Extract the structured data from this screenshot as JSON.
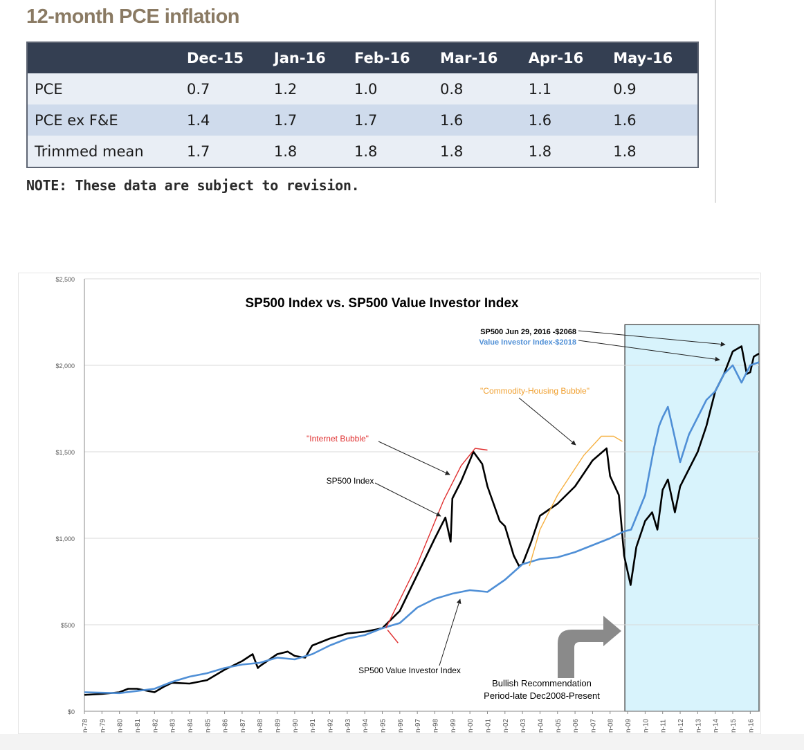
{
  "pce": {
    "title": "12-month PCE inflation",
    "columns": [
      "",
      "Dec-15",
      "Jan-16",
      "Feb-16",
      "Mar-16",
      "Apr-16",
      "May-16"
    ],
    "rows": [
      {
        "label": "PCE",
        "values": [
          "0.7",
          "1.2",
          "1.0",
          "0.8",
          "1.1",
          "0.9"
        ]
      },
      {
        "label": "PCE ex F&E",
        "values": [
          "1.4",
          "1.7",
          "1.7",
          "1.6",
          "1.6",
          "1.6"
        ]
      },
      {
        "label": "Trimmed mean",
        "values": [
          "1.7",
          "1.8",
          "1.8",
          "1.8",
          "1.8",
          "1.8"
        ]
      }
    ],
    "note": "NOTE: These data are subject to revision."
  },
  "chart_data": [
    {
      "type": "table",
      "title": "12-month PCE inflation",
      "categories": [
        "Dec-15",
        "Jan-16",
        "Feb-16",
        "Mar-16",
        "Apr-16",
        "May-16"
      ],
      "series": [
        {
          "name": "PCE",
          "values": [
            0.7,
            1.2,
            1.0,
            0.8,
            1.1,
            0.9
          ]
        },
        {
          "name": "PCE ex F&E",
          "values": [
            1.4,
            1.7,
            1.7,
            1.6,
            1.6,
            1.6
          ]
        },
        {
          "name": "Trimmed mean",
          "values": [
            1.7,
            1.8,
            1.8,
            1.8,
            1.8,
            1.8
          ]
        }
      ]
    },
    {
      "type": "line",
      "title": "SP500 Index vs. SP500 Value Investor Index",
      "xlabel": "",
      "ylabel": "",
      "ylim": [
        0,
        2500
      ],
      "xlim": [
        1978,
        2016.5
      ],
      "yticks": [
        "$0",
        "$500",
        "$1,000",
        "$1,500",
        "$2,000",
        "$2,500"
      ],
      "xticks": [
        "n-78",
        "n-79",
        "n-80",
        "n-81",
        "n-82",
        "n-83",
        "n-84",
        "n-85",
        "n-86",
        "n-87",
        "n-88",
        "n-89",
        "n-90",
        "n-91",
        "n-92",
        "n-93",
        "n-94",
        "n-95",
        "n-96",
        "n-97",
        "n-98",
        "n-99",
        "n-00",
        "n-01",
        "n-02",
        "n-03",
        "n-04",
        "n-05",
        "n-06",
        "n-07",
        "n-08",
        "n-09",
        "n-10",
        "n-11",
        "n-12",
        "n-13",
        "n-14",
        "n-15",
        "n-16"
      ],
      "grid": true,
      "series": [
        {
          "name": "SP500 Index",
          "color": "#000000",
          "x": [
            1978,
            1979,
            1980,
            1980.5,
            1981,
            1982,
            1982.5,
            1983,
            1984,
            1985,
            1986,
            1987,
            1987.6,
            1987.9,
            1988,
            1989,
            1989.6,
            1990,
            1990.6,
            1991,
            1992,
            1993,
            1994,
            1995,
            1996,
            1997,
            1998,
            1998.6,
            1998.9,
            1999,
            1999.5,
            2000,
            2000.2,
            2000.7,
            2001,
            2001.7,
            2002,
            2002.5,
            2002.8,
            2003,
            2003.5,
            2004,
            2005,
            2006,
            2007,
            2007.8,
            2008,
            2008.5,
            2008.8,
            2009.17,
            2009.5,
            2010,
            2010.4,
            2010.7,
            2011,
            2011.3,
            2011.7,
            2012,
            2012.5,
            2013,
            2013.5,
            2014,
            2014.5,
            2015,
            2015.5,
            2015.8,
            2016,
            2016.2,
            2016.5
          ],
          "values": [
            95,
            100,
            110,
            130,
            130,
            110,
            140,
            165,
            160,
            180,
            240,
            290,
            330,
            250,
            260,
            330,
            345,
            320,
            310,
            380,
            420,
            450,
            460,
            480,
            580,
            790,
            1000,
            1120,
            980,
            1230,
            1330,
            1450,
            1500,
            1430,
            1300,
            1100,
            1070,
            900,
            840,
            850,
            980,
            1130,
            1200,
            1300,
            1450,
            1520,
            1360,
            1250,
            900,
            730,
            950,
            1100,
            1150,
            1050,
            1280,
            1340,
            1150,
            1300,
            1400,
            1500,
            1650,
            1850,
            1950,
            2080,
            2110,
            1950,
            1960,
            2050,
            2068
          ]
        },
        {
          "name": "SP500 Value Investor Index",
          "color": "#4f8fd6",
          "x": [
            1978,
            1980,
            1982,
            1983,
            1984,
            1985,
            1986,
            1987,
            1988,
            1989,
            1990,
            1991,
            1992,
            1993,
            1994,
            1995,
            1996,
            1997,
            1998,
            1999,
            2000,
            2001,
            2002,
            2003,
            2004,
            2005,
            2006,
            2007,
            2008,
            2008.8,
            2009.2,
            2009.6,
            2010,
            2010.5,
            2010.8,
            2011,
            2011.3,
            2011.7,
            2012,
            2012.5,
            2013,
            2013.5,
            2014,
            2014.5,
            2015,
            2015.5,
            2016,
            2016.5
          ],
          "values": [
            110,
            105,
            130,
            170,
            200,
            220,
            250,
            270,
            280,
            310,
            300,
            330,
            380,
            420,
            440,
            480,
            510,
            600,
            650,
            680,
            700,
            690,
            760,
            850,
            880,
            890,
            920,
            960,
            1000,
            1040,
            1050,
            1150,
            1250,
            1520,
            1650,
            1700,
            1760,
            1580,
            1440,
            1600,
            1700,
            1800,
            1850,
            1950,
            2000,
            1900,
            2000,
            2018
          ]
        }
      ],
      "annotations": [
        {
          "text": "SP500 Jun 29, 2016 -$2068",
          "color": "#000000"
        },
        {
          "text": "Value Investor Index-$2018",
          "color": "#4f8fd6"
        },
        {
          "text": "\"Commodity-Housing  Bubble\"",
          "color": "#f0a030"
        },
        {
          "text": "\"Internet  Bubble\"",
          "color": "#e03030"
        },
        {
          "text": "SP500 Index",
          "color": "#000000"
        },
        {
          "text": "SP500  Value  Investor  Index",
          "color": "#000000"
        },
        {
          "text": "Bullish Recommendation",
          "color": "#000000"
        },
        {
          "text": "Period-late  Dec2008-Present",
          "color": "#000000"
        }
      ],
      "highlight": {
        "from": 2009,
        "to": 2016.5,
        "color": "#d8f3fc"
      }
    }
  ]
}
